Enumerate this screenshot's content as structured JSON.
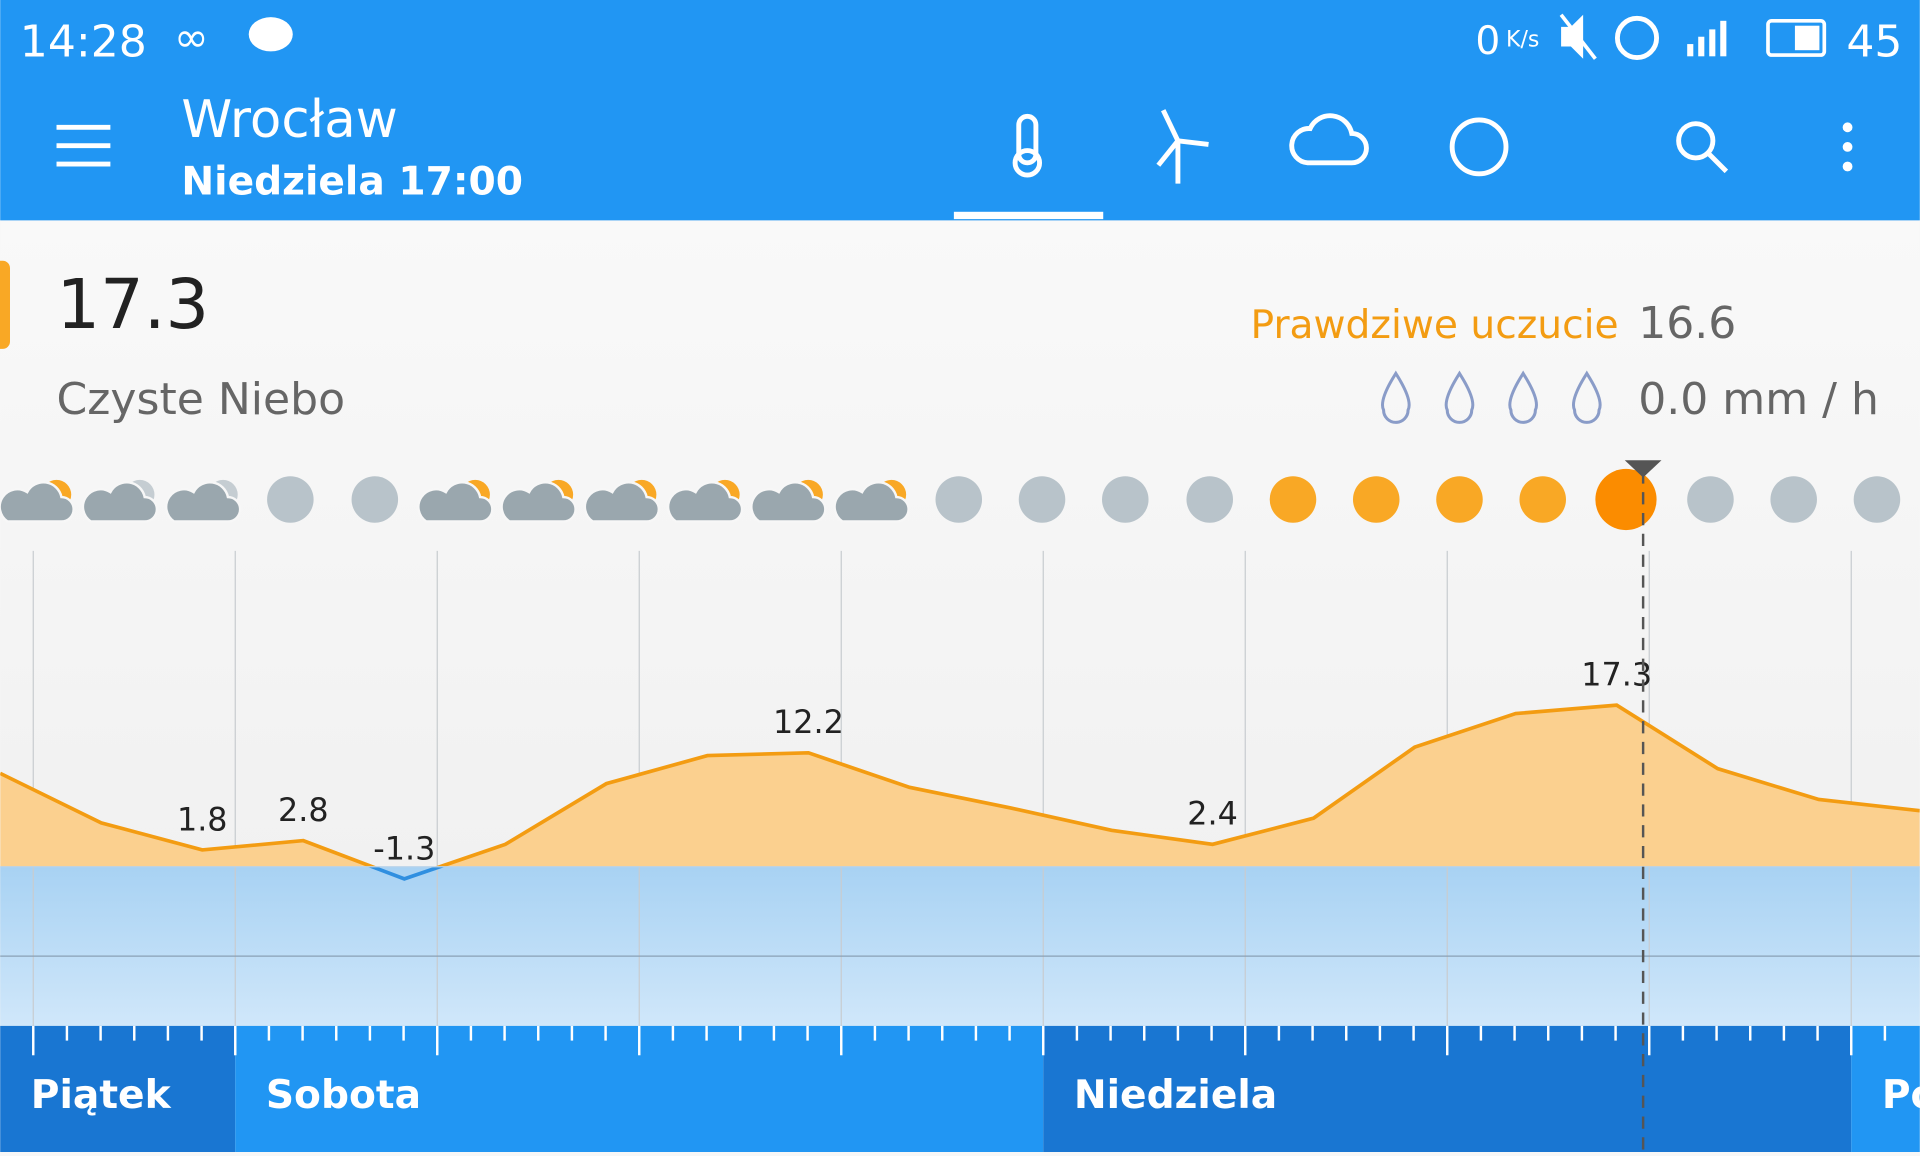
{
  "status_bar": {
    "time": "14:28",
    "speed": "0",
    "speed_unit": "K/s",
    "battery": "45"
  },
  "app_bar": {
    "city": "Wrocław",
    "datetime": "Niedziela 17:00"
  },
  "current": {
    "temperature": "17.3",
    "condition": "Czyste Niebo",
    "feels_like_label": "Prawdziwe uczucie",
    "feels_like": "16.6",
    "precipitation": "0.0 mm / h"
  },
  "temperature_chart": {
    "values": [
      10.0,
      4.7,
      1.8,
      2.8,
      -1.3,
      2.4,
      8.9,
      11.9,
      12.2,
      8.5,
      6.3,
      3.9,
      2.4,
      5.2,
      12.8,
      16.4,
      17.3,
      10.5,
      7.2,
      6.0
    ]
  },
  "days": [
    "Piątek",
    "Sobota",
    "Niedziela",
    "Po"
  ]
}
